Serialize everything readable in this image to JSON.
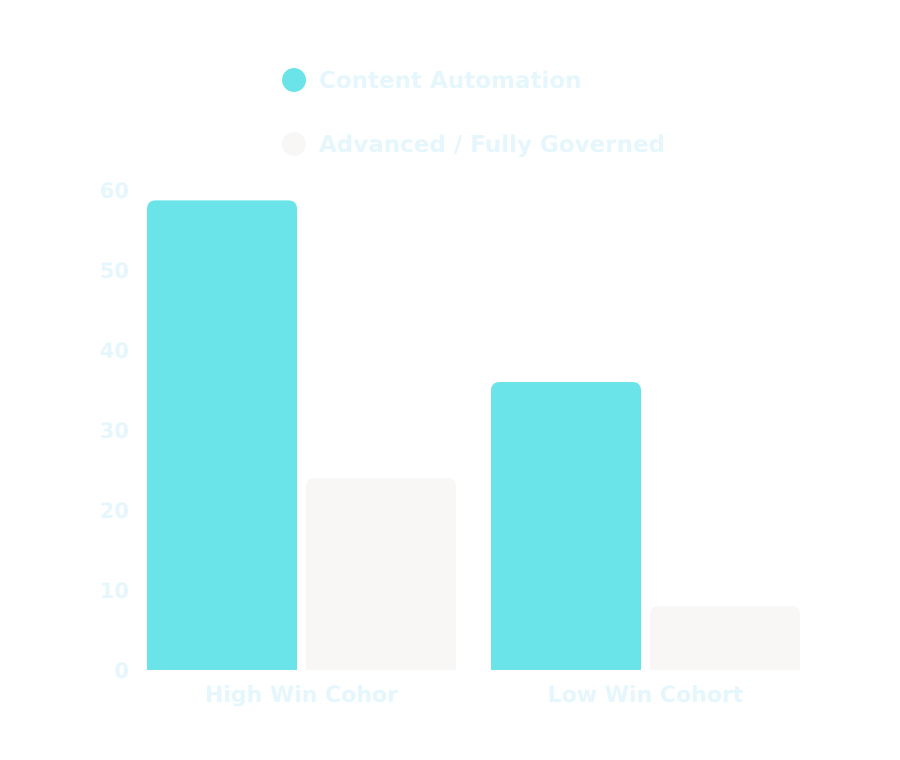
{
  "colors": {
    "background": "#ffffff",
    "text": "#e5f7fc"
  },
  "chart_data": {
    "type": "bar",
    "title": "",
    "xlabel": "",
    "ylabel": "",
    "categories": [
      "High Win Cohor",
      "Low Win Cohort"
    ],
    "series": [
      {
        "name": "Content Automation",
        "color": "#6ae4e8",
        "values": [
          58.7,
          36
        ]
      },
      {
        "name": "Advanced / Fully Governed",
        "color": "#f8f7f6",
        "values": [
          24,
          8
        ]
      }
    ],
    "ylim": [
      0,
      60
    ],
    "yticks": [
      "0",
      "10",
      "20",
      "30",
      "40",
      "50",
      "60"
    ],
    "grid": false,
    "legend_position": "top"
  }
}
